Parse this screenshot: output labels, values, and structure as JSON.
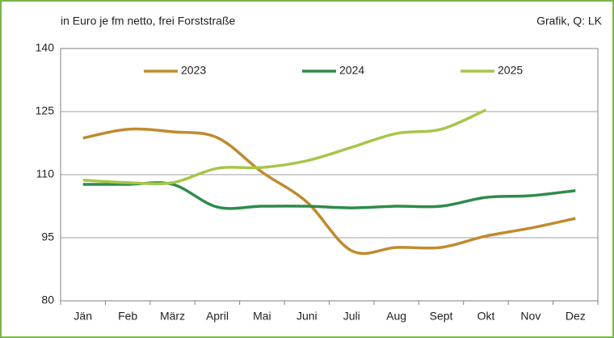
{
  "chart_data": {
    "type": "line",
    "title": "in Euro je fm netto, frei Forststraße",
    "source": "Grafik, Q: LK",
    "categories": [
      "Jän",
      "Feb",
      "März",
      "April",
      "Mai",
      "Juni",
      "Juli",
      "Aug",
      "Sept",
      "Okt",
      "Nov",
      "Dez"
    ],
    "series": [
      {
        "name": "2023",
        "color": "#c08a2e",
        "values": [
          118.7,
          120.8,
          120.2,
          118.8,
          110.6,
          103.5,
          91.9,
          92.7,
          92.7,
          95.4,
          97.3,
          99.6
        ]
      },
      {
        "name": "2024",
        "color": "#2e8b4a",
        "values": [
          107.7,
          107.7,
          107.7,
          102.3,
          102.5,
          102.5,
          102.1,
          102.5,
          102.5,
          104.6,
          105.0,
          106.2
        ]
      },
      {
        "name": "2025",
        "color": "#a6c64a",
        "values": [
          108.7,
          108.1,
          108.1,
          111.5,
          111.7,
          113.3,
          116.5,
          119.8,
          120.8,
          125.4,
          null,
          null
        ]
      }
    ],
    "ylim": [
      80,
      140
    ],
    "yticks": [
      80,
      95,
      110,
      125,
      140
    ],
    "grid": true,
    "legend": "top"
  }
}
